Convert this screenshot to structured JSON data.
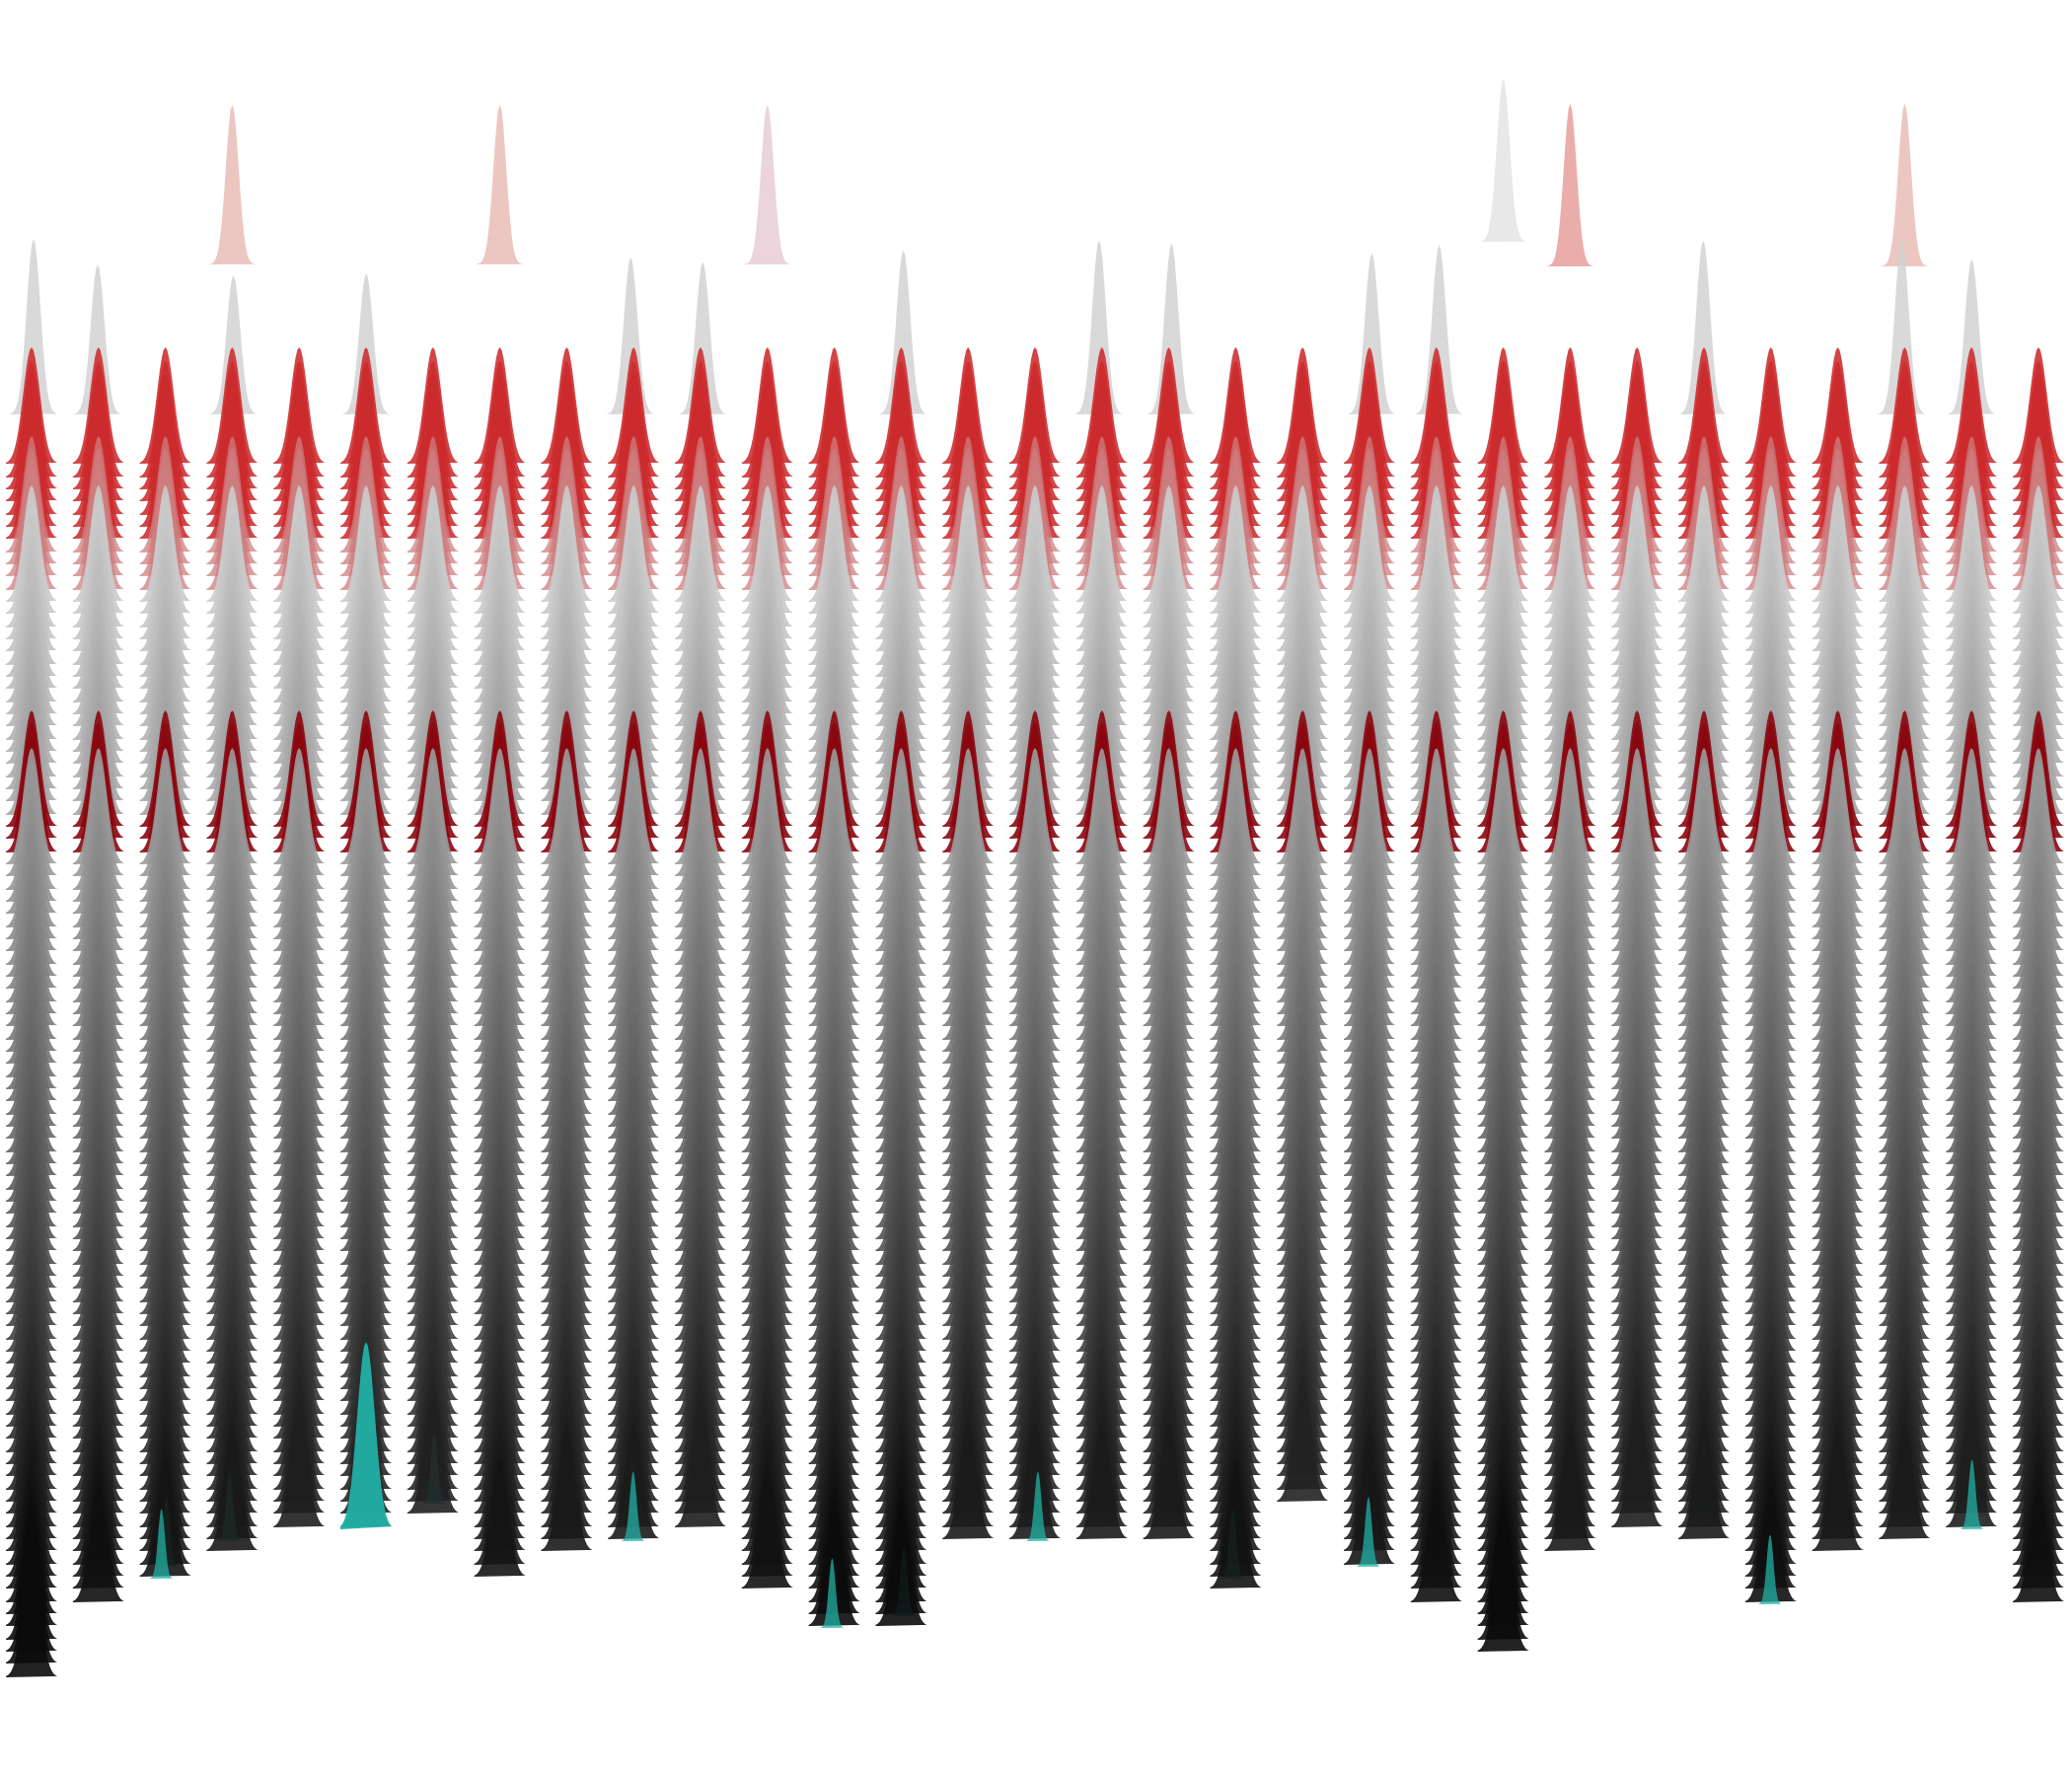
{
  "artwork": {
    "subject": "generative-ridgeline-forest",
    "column_count": 31,
    "palette": {
      "background": "#ffffff",
      "red": "#cc2b2e",
      "deep_red": "#8a0710",
      "pale_red": "#e9a9a4",
      "pale_pink": "#e8ccd6",
      "light_gray": "#cfcfcf",
      "mid_gray": "#8f8f8f",
      "dark_gray": "#3c3c3c",
      "near_black": "#0b0b0b",
      "teal": "#22b0a6",
      "steel_blue": "#5e8fb3",
      "orange": "#b34a1d"
    }
  }
}
